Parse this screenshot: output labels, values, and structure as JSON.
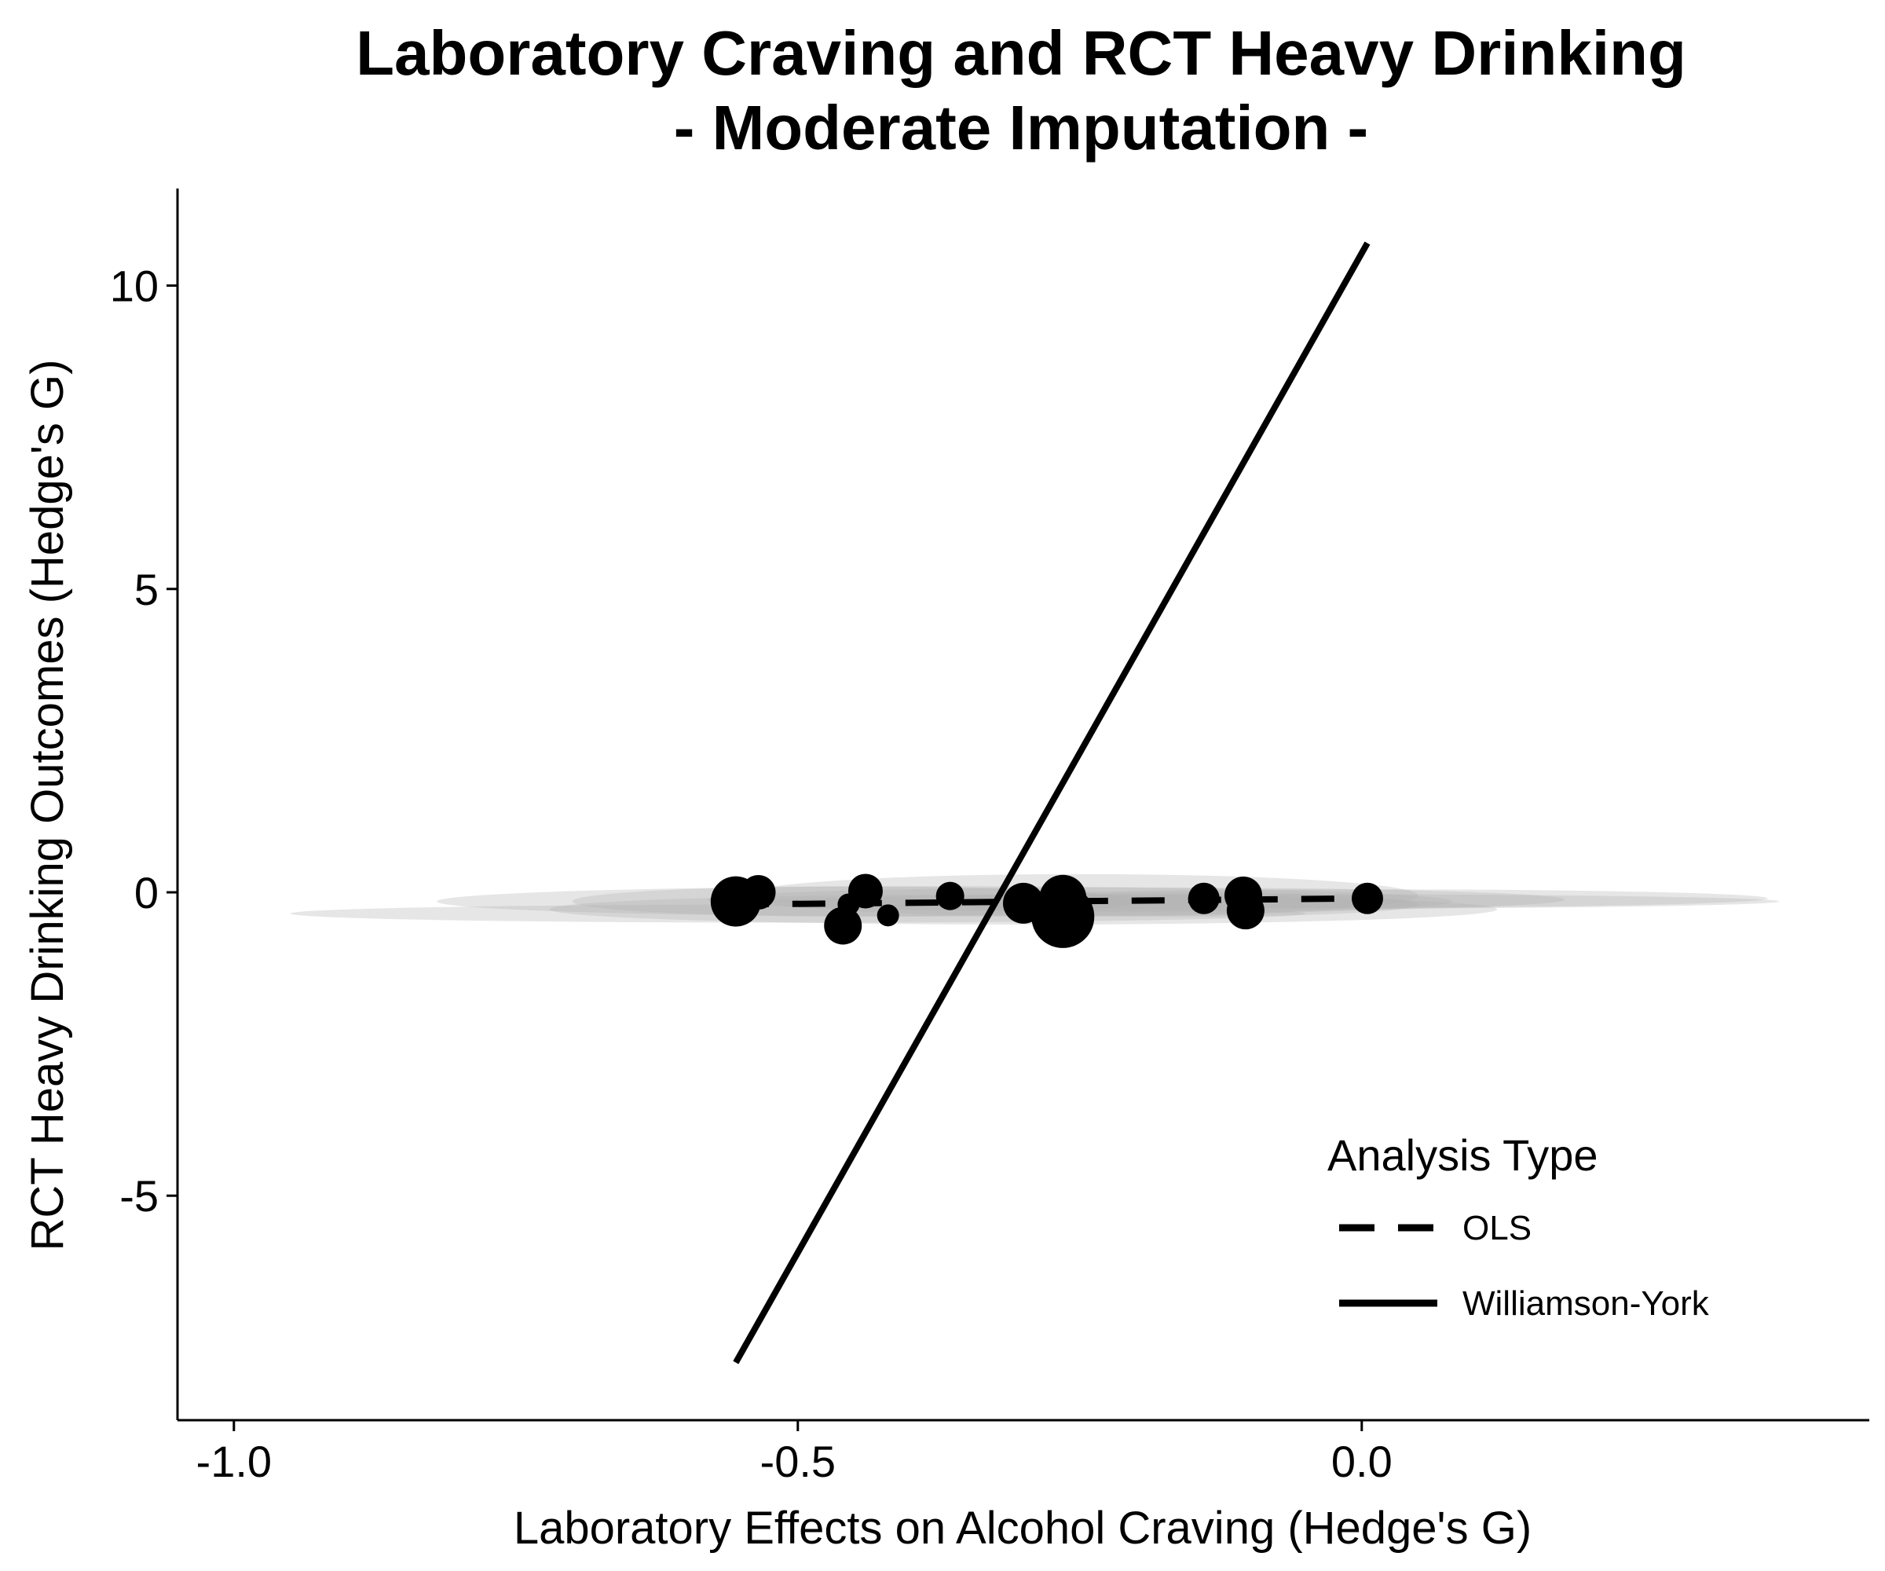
{
  "chart_data": {
    "type": "scatter",
    "title": "Laboratory Craving and RCT Heavy Drinking",
    "subtitle": "- Moderate Imputation -",
    "xlabel": "Laboratory Effects on Alcohol Craving (Hedge's G)",
    "ylabel": "RCT Heavy Drinking Outcomes (Hedge's G)",
    "xlim": [
      -1.05,
      0.45
    ],
    "ylim": [
      -8.7,
      11.6
    ],
    "x_ticks": [
      -1.0,
      -0.5,
      0.0
    ],
    "x_tick_labels": [
      "-1.0",
      "-0.5",
      "0.0"
    ],
    "y_ticks": [
      -5,
      0,
      5,
      10
    ],
    "y_tick_labels": [
      "-5",
      "0",
      "5",
      "10"
    ],
    "grid": false,
    "points": [
      {
        "x": -0.555,
        "y": -0.15,
        "size": 32
      },
      {
        "x": -0.535,
        "y": 0.0,
        "size": 22
      },
      {
        "x": -0.46,
        "y": -0.55,
        "size": 24
      },
      {
        "x": -0.455,
        "y": -0.2,
        "size": 14
      },
      {
        "x": -0.44,
        "y": 0.02,
        "size": 22
      },
      {
        "x": -0.42,
        "y": -0.38,
        "size": 14
      },
      {
        "x": -0.365,
        "y": -0.06,
        "size": 18
      },
      {
        "x": -0.3,
        "y": -0.18,
        "size": 26
      },
      {
        "x": -0.265,
        "y": -0.4,
        "size": 40
      },
      {
        "x": -0.265,
        "y": -0.1,
        "size": 30
      },
      {
        "x": -0.14,
        "y": -0.1,
        "size": 20
      },
      {
        "x": -0.105,
        "y": -0.05,
        "size": 24
      },
      {
        "x": -0.103,
        "y": -0.3,
        "size": 24
      },
      {
        "x": 0.005,
        "y": -0.1,
        "size": 20
      }
    ],
    "uncertainty_ellipses": [
      {
        "cx": -0.5,
        "cy": -0.35,
        "rx": 0.45,
        "ry": 0.15
      },
      {
        "cx": -0.37,
        "cy": -0.15,
        "rx": 0.45,
        "ry": 0.25
      },
      {
        "cx": -0.3,
        "cy": -0.28,
        "rx": 0.42,
        "ry": 0.25
      },
      {
        "cx": -0.2,
        "cy": -0.12,
        "rx": 0.38,
        "ry": 0.2
      },
      {
        "cx": -0.08,
        "cy": -0.15,
        "rx": 0.45,
        "ry": 0.12
      },
      {
        "cx": 0.0,
        "cy": -0.1,
        "rx": 0.36,
        "ry": 0.15
      },
      {
        "cx": -0.25,
        "cy": -0.05,
        "rx": 0.3,
        "ry": 0.35
      },
      {
        "cx": -0.45,
        "cy": -0.15,
        "rx": 0.25,
        "ry": 0.25
      },
      {
        "cx": -0.15,
        "cy": -0.2,
        "rx": 0.2,
        "ry": 0.2
      }
    ],
    "series": [
      {
        "name": "OLS",
        "style": "dashed",
        "x": [
          -0.555,
          0.005
        ],
        "y": [
          -0.2,
          -0.1
        ]
      },
      {
        "name": "Williamson-York",
        "style": "solid",
        "x": [
          -0.555,
          0.005
        ],
        "y": [
          -7.75,
          10.7
        ]
      }
    ],
    "legend": {
      "title": "Analysis Type",
      "position": "bottom-right",
      "entries": [
        "OLS",
        "Williamson-York"
      ]
    },
    "colors": {
      "points": "#000000",
      "lines": "#000000",
      "ellipses": "#b0b0b0",
      "background": "#ffffff"
    }
  }
}
